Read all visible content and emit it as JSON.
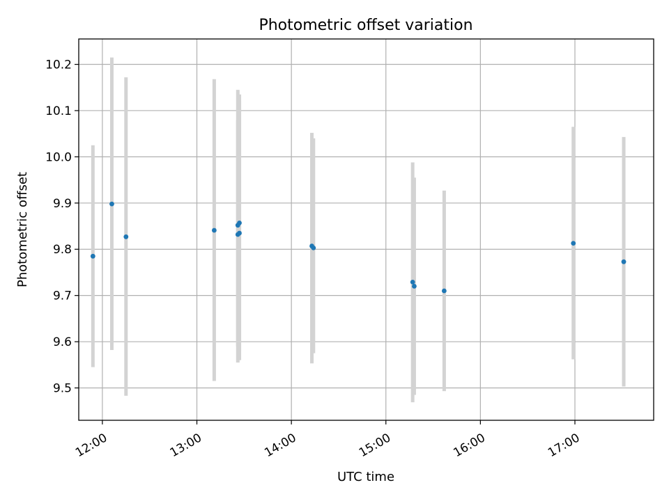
{
  "chart_data": {
    "type": "scatter",
    "title": "Photometric offset variation",
    "xlabel": "UTC time",
    "ylabel": "Photometric offset",
    "xlim": [
      "11:45",
      "17:50"
    ],
    "ylim": [
      9.43,
      10.255
    ],
    "grid": true,
    "x_ticks": [
      "12:00",
      "13:00",
      "14:00",
      "15:00",
      "16:00",
      "17:00"
    ],
    "y_ticks": [
      "9.5",
      "9.6",
      "9.7",
      "9.8",
      "9.9",
      "10.0",
      "10.1",
      "10.2"
    ],
    "colors": {
      "points": "#1f77b4",
      "errorbars": "#d3d3d3",
      "grid": "#b0b0b0"
    },
    "points": [
      {
        "x": "11:54",
        "y": 9.785,
        "ylo": 9.545,
        "yhi": 10.025
      },
      {
        "x": "12:06",
        "y": 9.898,
        "ylo": 9.582,
        "yhi": 10.215
      },
      {
        "x": "12:15",
        "y": 9.827,
        "ylo": 9.483,
        "yhi": 10.172
      },
      {
        "x": "13:11",
        "y": 9.841,
        "ylo": 9.515,
        "yhi": 10.168
      },
      {
        "x": "13:26",
        "y": 9.852,
        "ylo": 9.555,
        "yhi": 10.145
      },
      {
        "x": "13:27",
        "y": 9.835,
        "ylo": 9.56,
        "yhi": 10.135
      },
      {
        "x": "13:26",
        "y": 9.832,
        "ylo": 9.59,
        "yhi": 10.08
      },
      {
        "x": "13:27",
        "y": 9.857,
        "ylo": 9.58,
        "yhi": 10.12
      },
      {
        "x": "14:13",
        "y": 9.807,
        "ylo": 9.553,
        "yhi": 10.052
      },
      {
        "x": "14:14",
        "y": 9.803,
        "ylo": 9.575,
        "yhi": 10.04
      },
      {
        "x": "15:17",
        "y": 9.729,
        "ylo": 9.469,
        "yhi": 9.988
      },
      {
        "x": "15:18",
        "y": 9.72,
        "ylo": 9.485,
        "yhi": 9.955
      },
      {
        "x": "15:37",
        "y": 9.71,
        "ylo": 9.493,
        "yhi": 9.927
      },
      {
        "x": "16:59",
        "y": 9.813,
        "ylo": 9.562,
        "yhi": 10.065
      },
      {
        "x": "17:31",
        "y": 9.773,
        "ylo": 9.503,
        "yhi": 10.043
      }
    ]
  }
}
